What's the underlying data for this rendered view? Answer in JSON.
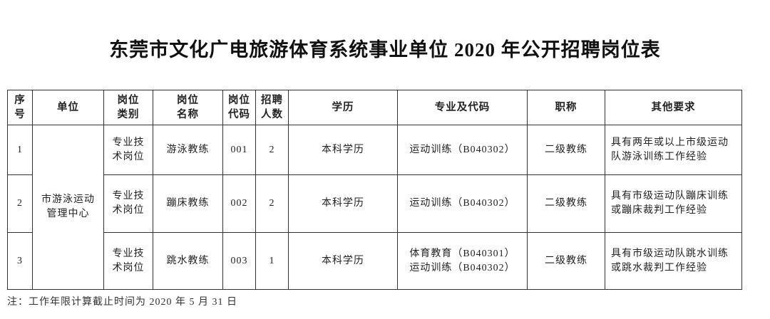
{
  "title": "东莞市文化广电旅游体育系统事业单位 2020 年公开招聘岗位表",
  "table": {
    "headers": [
      "序\n号",
      "单位",
      "岗位\n类别",
      "岗位\n名称",
      "岗位\n代码",
      "招聘\n人数",
      "学历",
      "专业及代码",
      "职称",
      "其他要求"
    ],
    "unit": "市游泳运动\n管理中心",
    "rows": [
      {
        "no": "1",
        "category": "专业技\n术岗位",
        "name": "游泳教练",
        "code": "001",
        "count": "2",
        "education": "本科学历",
        "major": "运动训练（B040302）",
        "title": "二级教练",
        "other": "具有两年或以上市级运动\n队游泳训练工作经验"
      },
      {
        "no": "2",
        "category": "专业技\n术岗位",
        "name": "蹦床教练",
        "code": "002",
        "count": "2",
        "education": "本科学历",
        "major": "运动训练（B040302）",
        "title": "二级教练",
        "other": "具有市级运动队蹦床训练\n或蹦床裁判工作经验"
      },
      {
        "no": "3",
        "category": "专业技\n术岗位",
        "name": "跳水教练",
        "code": "003",
        "count": "1",
        "education": "本科学历",
        "major": "体育教育（B040301）\n运动训练（B040302）",
        "title": "二级教练",
        "other": "具有市级运动队跳水训练\n或跳水裁判工作经验"
      }
    ]
  },
  "note": "注：工作年限计算截止时间为 2020 年 5 月 31 日"
}
